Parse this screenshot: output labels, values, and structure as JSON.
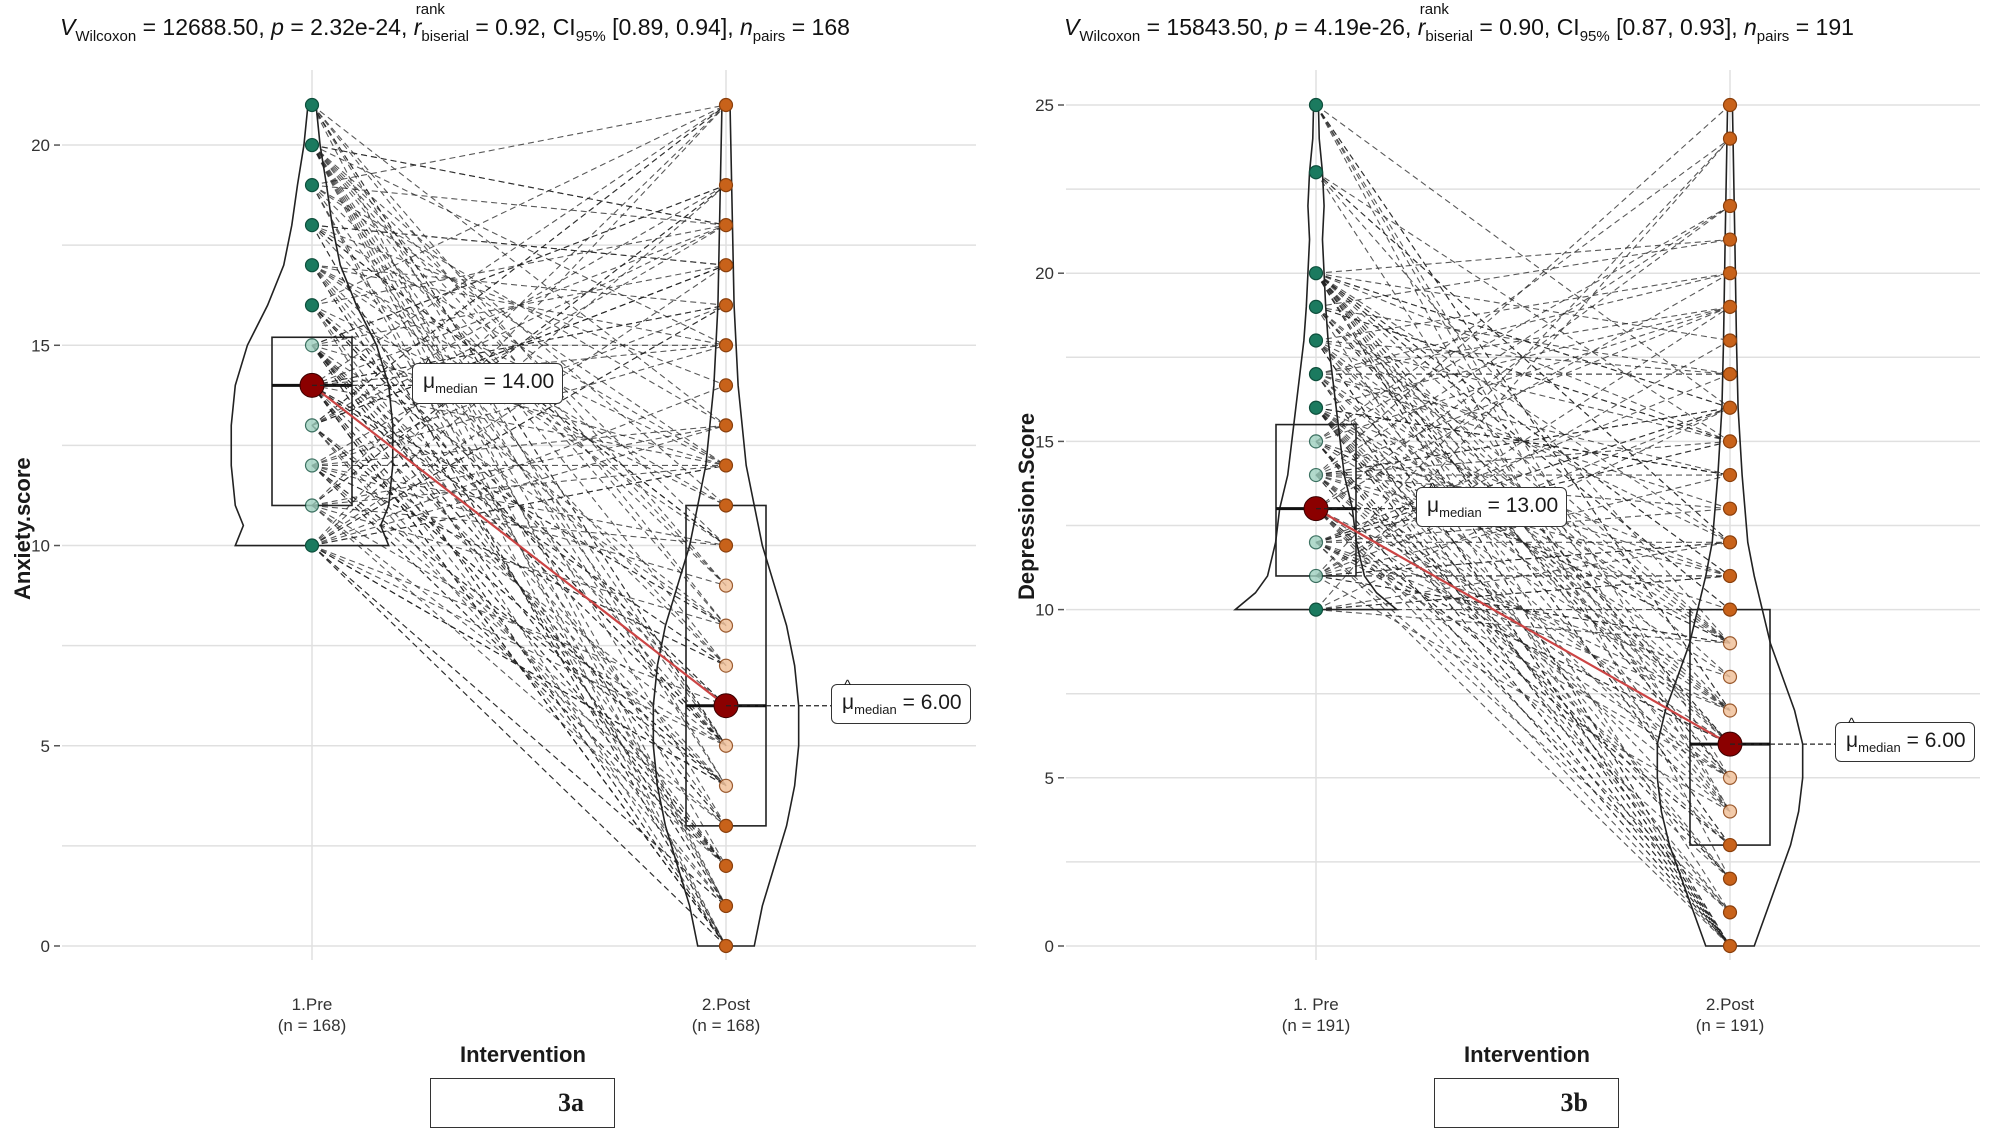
{
  "colors": {
    "pre_point": "#1b7a5f",
    "post_point": "#c8621a",
    "median_point": "#8b0000",
    "median_line": "#cc4444",
    "grid": "#e0e0e0"
  },
  "chart_data": [
    {
      "type": "violin-box-paired",
      "panel_label": "3a",
      "stat_text": {
        "v_symbol": "V",
        "v_sub": "Wilcoxon",
        "v_value": " = 12688.50, ",
        "p_symbol": "p",
        "p_value": " = 2.32e-24, ",
        "r_symbol": "r",
        "r_sup": "rank",
        "r_sub": "biserial",
        "r_value": " = 0.92, CI",
        "ci_sub": "95%",
        "ci_value": " [0.89, 0.94], ",
        "n_symbol": "n",
        "n_sub": "pairs",
        "n_value": " = 168"
      },
      "xlabel": "Intervention",
      "ylabel": "Anxiety.score",
      "categories": [
        "1.Pre",
        "2.Post"
      ],
      "category_counts": [
        "(n = 168)",
        "(n = 168)"
      ],
      "ylim": [
        0,
        21
      ],
      "yticks": [
        0,
        5,
        10,
        15,
        20
      ],
      "pre_values": [
        10,
        11,
        12,
        13,
        14,
        15,
        16,
        17,
        18,
        19,
        20,
        21
      ],
      "post_values": [
        0,
        1,
        2,
        3,
        4,
        5,
        6,
        7,
        8,
        9,
        10,
        11,
        12,
        13,
        14,
        15,
        16,
        17,
        18,
        19,
        21
      ],
      "pre_box": {
        "q1": 11,
        "median": 14,
        "q3": 15.2,
        "min": 10,
        "max": 21
      },
      "post_box": {
        "q1": 3,
        "median": 6,
        "q3": 11,
        "min": 0,
        "max": 21
      },
      "medians": [
        14.0,
        6.0
      ],
      "median_labels": {
        "pre": "14.00",
        "post": "6.00"
      },
      "median_prefix": "μ",
      "median_sub": "median",
      "pre_density": [
        [
          10,
          0.95
        ],
        [
          10.5,
          0.85
        ],
        [
          11,
          0.95
        ],
        [
          12,
          1.0
        ],
        [
          13,
          1.0
        ],
        [
          14,
          0.95
        ],
        [
          15,
          0.8
        ],
        [
          16,
          0.55
        ],
        [
          17,
          0.35
        ],
        [
          18,
          0.25
        ],
        [
          19,
          0.18
        ],
        [
          20,
          0.1
        ],
        [
          21,
          0.05
        ]
      ],
      "post_density": [
        [
          0,
          0.35
        ],
        [
          1,
          0.45
        ],
        [
          2,
          0.6
        ],
        [
          3,
          0.75
        ],
        [
          4,
          0.85
        ],
        [
          5,
          0.9
        ],
        [
          6,
          0.9
        ],
        [
          7,
          0.85
        ],
        [
          8,
          0.75
        ],
        [
          9,
          0.6
        ],
        [
          10,
          0.45
        ],
        [
          11,
          0.35
        ],
        [
          12,
          0.25
        ],
        [
          14,
          0.15
        ],
        [
          16,
          0.1
        ],
        [
          18,
          0.08
        ],
        [
          21,
          0.05
        ]
      ]
    },
    {
      "type": "violin-box-paired",
      "panel_label": "3b",
      "stat_text": {
        "v_symbol": "V",
        "v_sub": "Wilcoxon",
        "v_value": " = 15843.50, ",
        "p_symbol": "p",
        "p_value": " = 4.19e-26, ",
        "r_symbol": "r",
        "r_sup": "rank",
        "r_sub": "biserial",
        "r_value": " = 0.90, CI",
        "ci_sub": "95%",
        "ci_value": " [0.87, 0.93], ",
        "n_symbol": "n",
        "n_sub": "pairs",
        "n_value": " = 191"
      },
      "xlabel": "Intervention",
      "ylabel": "Depression.Score",
      "categories": [
        "1. Pre",
        "2.Post"
      ],
      "category_counts": [
        "(n = 191)",
        "(n = 191)"
      ],
      "ylim": [
        0,
        25
      ],
      "yticks": [
        0,
        5,
        10,
        15,
        20,
        25
      ],
      "pre_values": [
        10,
        11,
        12,
        13,
        14,
        15,
        16,
        17,
        18,
        19,
        20,
        23,
        25
      ],
      "post_values": [
        0,
        1,
        2,
        3,
        4,
        5,
        6,
        7,
        8,
        9,
        10,
        11,
        12,
        13,
        14,
        15,
        16,
        17,
        18,
        19,
        20,
        21,
        22,
        24,
        25
      ],
      "pre_box": {
        "q1": 11,
        "median": 13,
        "q3": 15.5,
        "min": 10,
        "max": 25
      },
      "post_box": {
        "q1": 3,
        "median": 6,
        "q3": 10,
        "min": 0,
        "max": 25
      },
      "medians": [
        13.0,
        6.0
      ],
      "median_labels": {
        "pre": "13.00",
        "post": "6.00"
      },
      "median_prefix": "μ",
      "median_sub": "median",
      "pre_density": [
        [
          10,
          1.0
        ],
        [
          10.5,
          0.75
        ],
        [
          11,
          0.6
        ],
        [
          12,
          0.5
        ],
        [
          13,
          0.45
        ],
        [
          14,
          0.35
        ],
        [
          15,
          0.3
        ],
        [
          16,
          0.25
        ],
        [
          17,
          0.2
        ],
        [
          18,
          0.15
        ],
        [
          19,
          0.12
        ],
        [
          20,
          0.1
        ],
        [
          21,
          0.08
        ],
        [
          22,
          0.1
        ],
        [
          23,
          0.08
        ],
        [
          24,
          0.04
        ],
        [
          25,
          0.03
        ]
      ],
      "post_density": [
        [
          0,
          0.3
        ],
        [
          1,
          0.45
        ],
        [
          2,
          0.6
        ],
        [
          3,
          0.75
        ],
        [
          4,
          0.85
        ],
        [
          5,
          0.9
        ],
        [
          6,
          0.9
        ],
        [
          7,
          0.8
        ],
        [
          8,
          0.65
        ],
        [
          9,
          0.5
        ],
        [
          10,
          0.4
        ],
        [
          11,
          0.3
        ],
        [
          12,
          0.22
        ],
        [
          14,
          0.15
        ],
        [
          16,
          0.1
        ],
        [
          18,
          0.08
        ],
        [
          21,
          0.06
        ],
        [
          25,
          0.03
        ]
      ]
    }
  ]
}
